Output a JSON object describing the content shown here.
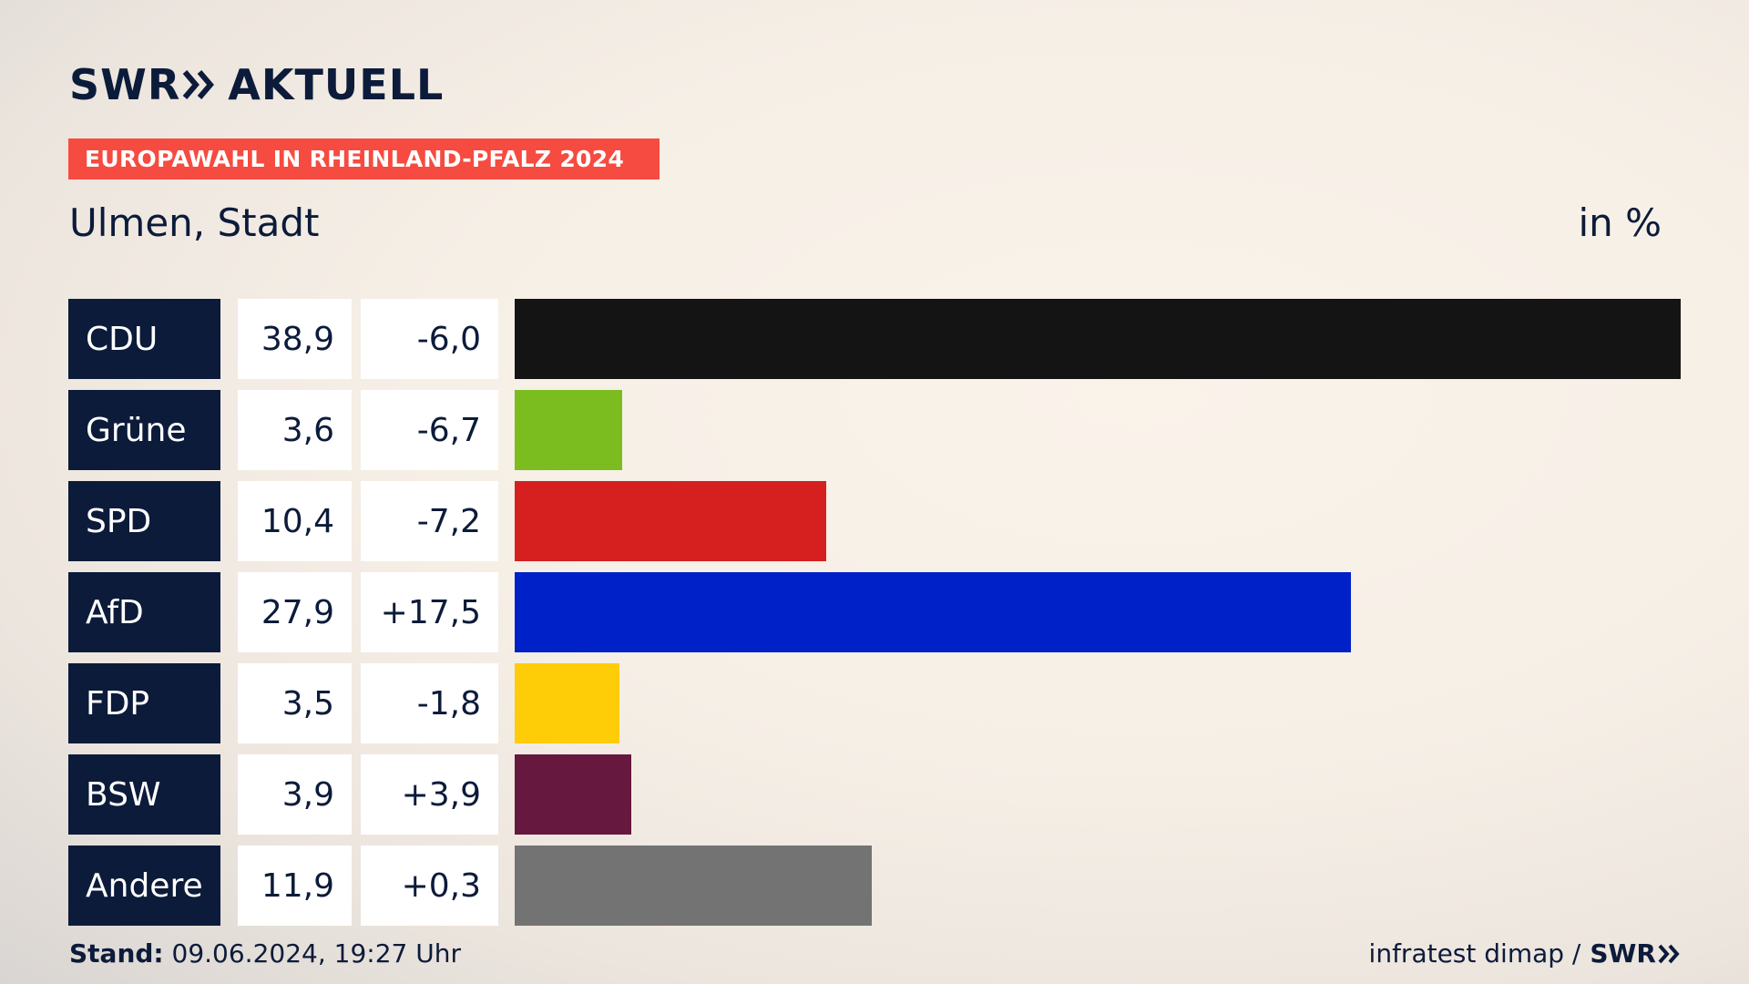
{
  "header": {
    "logo_brand": "SWR",
    "logo_name": "AKTUELL",
    "banner": "EUROPAWAHL IN RHEINLAND-PFALZ 2024",
    "place": "Ulmen, Stadt",
    "unit": "in %"
  },
  "chart_data": {
    "type": "bar",
    "orientation": "horizontal",
    "categories": [
      "CDU",
      "Grüne",
      "SPD",
      "AfD",
      "FDP",
      "BSW",
      "Andere"
    ],
    "values": [
      38.9,
      3.6,
      10.4,
      27.9,
      3.5,
      3.9,
      11.9
    ],
    "value_labels": [
      "38,9",
      "3,6",
      "10,4",
      "27,9",
      "3,5",
      "3,9",
      "11,9"
    ],
    "diff_labels": [
      "-6,0",
      "-6,7",
      "-7,2",
      "+17,5",
      "-1,8",
      "+3,9",
      "+0,3"
    ],
    "diffs": [
      -6.0,
      -6.7,
      -7.2,
      17.5,
      -1.8,
      3.9,
      0.3
    ],
    "colors": [
      "#141414",
      "#7bbd1f",
      "#d5201f",
      "#0021c8",
      "#ffcd08",
      "#67183e",
      "#737373"
    ],
    "xlim": [
      0,
      38.9
    ]
  },
  "footer": {
    "stand_label": "Stand:",
    "stand_value": " 09.06.2024, 19:27 Uhr",
    "source": "infratest dimap /",
    "source_logo": "SWR"
  }
}
